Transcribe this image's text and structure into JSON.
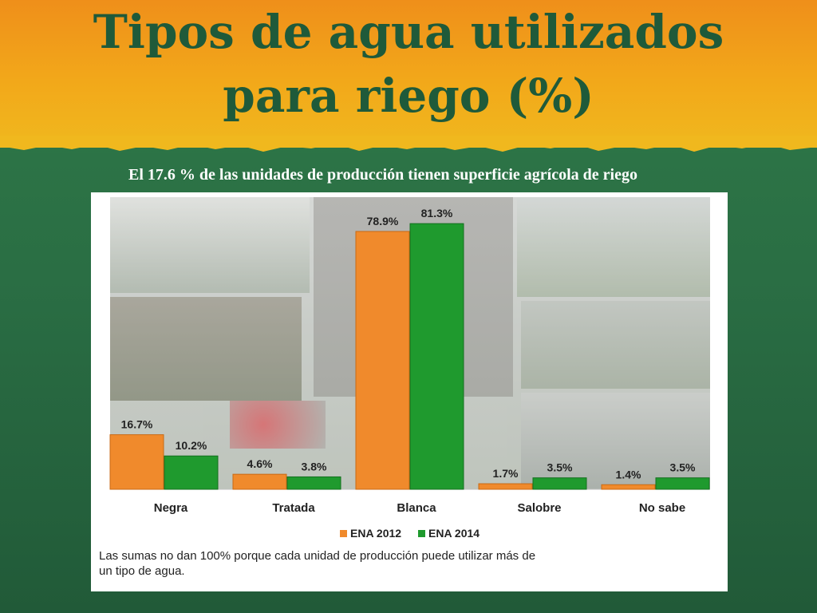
{
  "slide": {
    "title_line1": "Tipos de agua utilizados",
    "title_line2": "para riego (%)",
    "subtitle": "El 17.6 % de las unidades de producción tienen superficie agrícola de riego"
  },
  "chart_data": {
    "type": "bar",
    "categories": [
      "Negra",
      "Tratada",
      "Blanca",
      "Salobre",
      "No sabe"
    ],
    "series": [
      {
        "name": "ENA 2012",
        "values": [
          16.7,
          4.6,
          78.9,
          1.7,
          1.4
        ],
        "labels": [
          "16.7%",
          "4.6%",
          "78.9%",
          "1.7%",
          "1.4%"
        ],
        "color": "#f08a2c"
      },
      {
        "name": "ENA 2014",
        "values": [
          10.2,
          3.8,
          81.3,
          3.5,
          3.5
        ],
        "labels": [
          "10.2%",
          "3.8%",
          "81.3%",
          "3.5%",
          "3.5%"
        ],
        "color": "#1f9a2e"
      }
    ],
    "ylim": [
      0,
      85
    ],
    "legend_position": "bottom",
    "note": "Las sumas no dan 100% porque cada unidad de producción puede utilizar más de un tipo de agua."
  },
  "colors": {
    "orange": "#f08a2c",
    "green": "#1f9a2e",
    "title": "#1f5a3a"
  }
}
